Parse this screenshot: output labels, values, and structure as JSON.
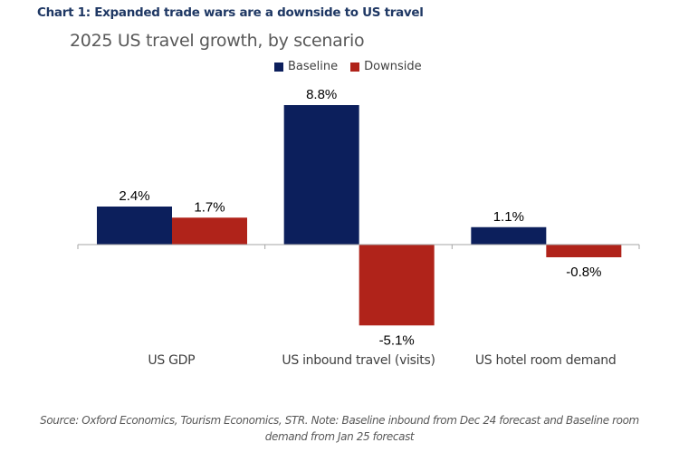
{
  "heading": "Chart 1: Expanded trade wars are a downside to US travel",
  "source_note": "Source: Oxford Economics, Tourism Economics, STR. Note: Baseline inbound from Dec 24 forecast and Baseline room demand from Jan 25 forecast",
  "chart_data": {
    "type": "bar",
    "title": "2025 US travel growth, by scenario",
    "xlabel": "",
    "ylabel": "",
    "categories": [
      "US GDP",
      "US inbound travel (visits)",
      "US hotel room demand"
    ],
    "series": [
      {
        "name": "Baseline",
        "color": "#0c1f5c",
        "values": [
          2.4,
          8.8,
          1.1
        ],
        "labels": [
          "2.4%",
          "8.8%",
          "1.1%"
        ]
      },
      {
        "name": "Downside",
        "color": "#b0231a",
        "values": [
          1.7,
          -5.1,
          -0.8
        ],
        "labels": [
          "1.7%",
          "-5.1%",
          "-0.8%"
        ]
      }
    ],
    "unit": "%",
    "ylim": [
      -6,
      10
    ],
    "grid": false,
    "y_axis_visible": false,
    "legend_position": "top-right"
  }
}
